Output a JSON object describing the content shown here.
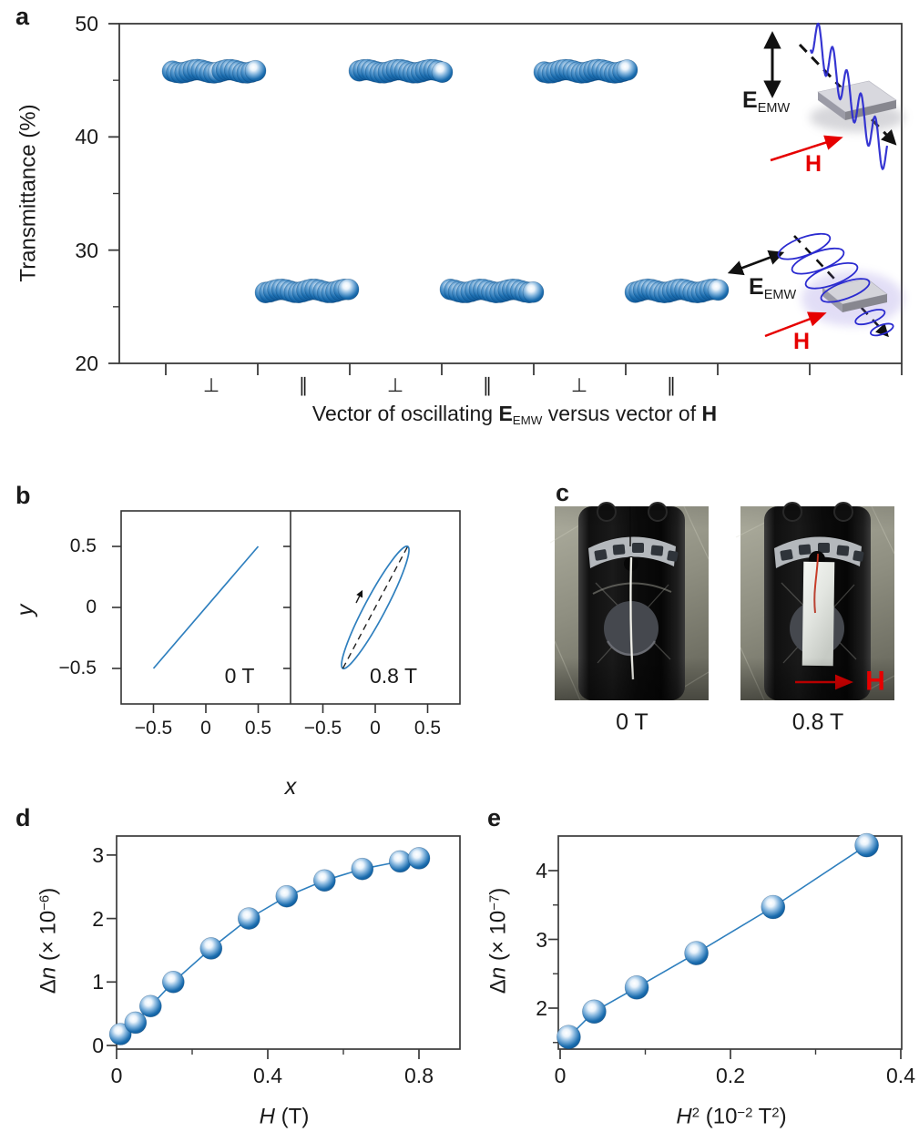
{
  "panels": {
    "a": "a",
    "b": "b",
    "c": "c",
    "d": "d",
    "e": "e"
  },
  "colors": {
    "sphere_blue": "#1668ac",
    "line_blue": "#2e7fbe",
    "wave_blue": "#2b2bd0",
    "field_red": "#e60000",
    "axis": "#3a3a3a"
  },
  "panel_a": {
    "ylabel": "Transmittance (%)",
    "ytick_labels": [
      "50",
      "40",
      "30",
      "20"
    ],
    "orientation_labels": [
      "⊥",
      "∥",
      "⊥",
      "∥",
      "⊥",
      "∥"
    ],
    "xlabel": {
      "pre": "Vector of oscillating ",
      "E": "E",
      "E_sub": "EMW",
      "mid": " versus vector of ",
      "H": "H"
    },
    "inset": {
      "E": "E",
      "E_sub": "EMW",
      "H": "H"
    }
  },
  "panel_b": {
    "ylabel": "y",
    "xlabel": "x",
    "ytick_labels": [
      "0.5",
      "0",
      "−0.5"
    ],
    "xtick_labels_left": [
      "−0.5",
      "0",
      "0.5"
    ],
    "xtick_labels_right": [
      "−0.5",
      "0",
      "0.5"
    ],
    "label_left": "0 T",
    "label_right": "0.8 T"
  },
  "panel_c": {
    "caption_left": "0 T",
    "caption_right": "0.8 T",
    "H_label": "H"
  },
  "panel_d": {
    "ylabel": {
      "delta": "Δ",
      "var": "n",
      "pre": " (× 10",
      "sup": "−6",
      "post": ")"
    },
    "xlabel": {
      "var": "H",
      "unit": " (T)"
    },
    "ytick_labels": [
      "0",
      "1",
      "2",
      "3"
    ],
    "xtick_labels": [
      "0",
      "0.4",
      "0.8"
    ]
  },
  "panel_e": {
    "ylabel": {
      "delta": "Δ",
      "var": "n",
      "pre": " (× 10",
      "sup": "−7",
      "post": ")"
    },
    "xlabel": {
      "var": "H",
      "varsup": "2",
      "pre": " (10",
      "sup": "−2",
      "mid": " T",
      "sup2": "2",
      "post": ")"
    },
    "ytick_labels": [
      "2",
      "3",
      "4"
    ],
    "xtick_labels": [
      "0",
      "0.2",
      "0.4"
    ]
  },
  "chart_data": [
    {
      "panel": "a",
      "type": "scatter",
      "title": "Transmittance for E_EMW perpendicular vs parallel to H",
      "xlabel": "Vector of oscillating E_EMW versus vector of H",
      "ylabel": "Transmittance (%)",
      "ylim": [
        20,
        50
      ],
      "ytick_values": [
        50,
        40,
        30,
        20
      ],
      "ytick_minor": [
        45,
        35,
        25
      ],
      "points_per_cluster": 21,
      "clusters": [
        {
          "orientation": "⊥",
          "transmittance": 45.8
        },
        {
          "orientation": "∥",
          "transmittance": 26.4
        },
        {
          "orientation": "⊥",
          "transmittance": 45.8
        },
        {
          "orientation": "∥",
          "transmittance": 26.4
        },
        {
          "orientation": "⊥",
          "transmittance": 45.8
        },
        {
          "orientation": "∥",
          "transmittance": 26.4
        }
      ]
    },
    {
      "panel": "b_left",
      "type": "line",
      "label": "0 T",
      "xlabel": "x",
      "ylabel": "y",
      "xlim": [
        -0.8,
        0.8
      ],
      "ylim": [
        -0.78,
        0.78
      ],
      "xtick_values": [
        -0.5,
        0,
        0.5
      ],
      "ytick_values": [
        0.5,
        0,
        -0.5
      ],
      "x": [
        -0.5,
        0.5
      ],
      "y": [
        -0.5,
        0.5
      ]
    },
    {
      "panel": "b_right",
      "type": "line",
      "label": "0.8 T",
      "xlim": [
        -0.8,
        0.8
      ],
      "ylim": [
        -0.78,
        0.78
      ],
      "ellipse": {
        "cx": 0,
        "cy": 0,
        "major_end": [
          0.31,
          0.5
        ],
        "minor_ratio": 0.15
      }
    },
    {
      "panel": "d",
      "type": "scatter",
      "xlabel": "H (T)",
      "ylabel": "Δn (× 10⁻⁶)",
      "xlim": [
        0,
        0.9
      ],
      "ylim": [
        0,
        3.35
      ],
      "xtick_values": [
        0,
        0.4,
        0.8
      ],
      "xtick_minor": [
        0.2,
        0.6
      ],
      "ytick_values": [
        0,
        1,
        2,
        3
      ],
      "x": [
        0.01,
        0.05,
        0.09,
        0.15,
        0.25,
        0.35,
        0.45,
        0.55,
        0.65,
        0.75,
        0.8
      ],
      "y": [
        0.18,
        0.36,
        0.62,
        1.0,
        1.53,
        2.0,
        2.35,
        2.6,
        2.78,
        2.9,
        2.95
      ]
    },
    {
      "panel": "e",
      "type": "scatter",
      "xlabel": "H² (10⁻² T²)",
      "ylabel": "Δn (× 10⁻⁷)",
      "xlim": [
        0,
        0.4
      ],
      "ylim": [
        1.4,
        4.5
      ],
      "xtick_values": [
        0,
        0.2,
        0.4
      ],
      "xtick_minor": [
        0.1,
        0.3
      ],
      "ytick_values": [
        2,
        3,
        4
      ],
      "ytick_minor": [
        1.5,
        2.5,
        3.5
      ],
      "x": [
        0.01,
        0.04,
        0.09,
        0.16,
        0.25,
        0.36
      ],
      "y": [
        1.58,
        1.95,
        2.3,
        2.8,
        3.47,
        4.37
      ]
    }
  ]
}
